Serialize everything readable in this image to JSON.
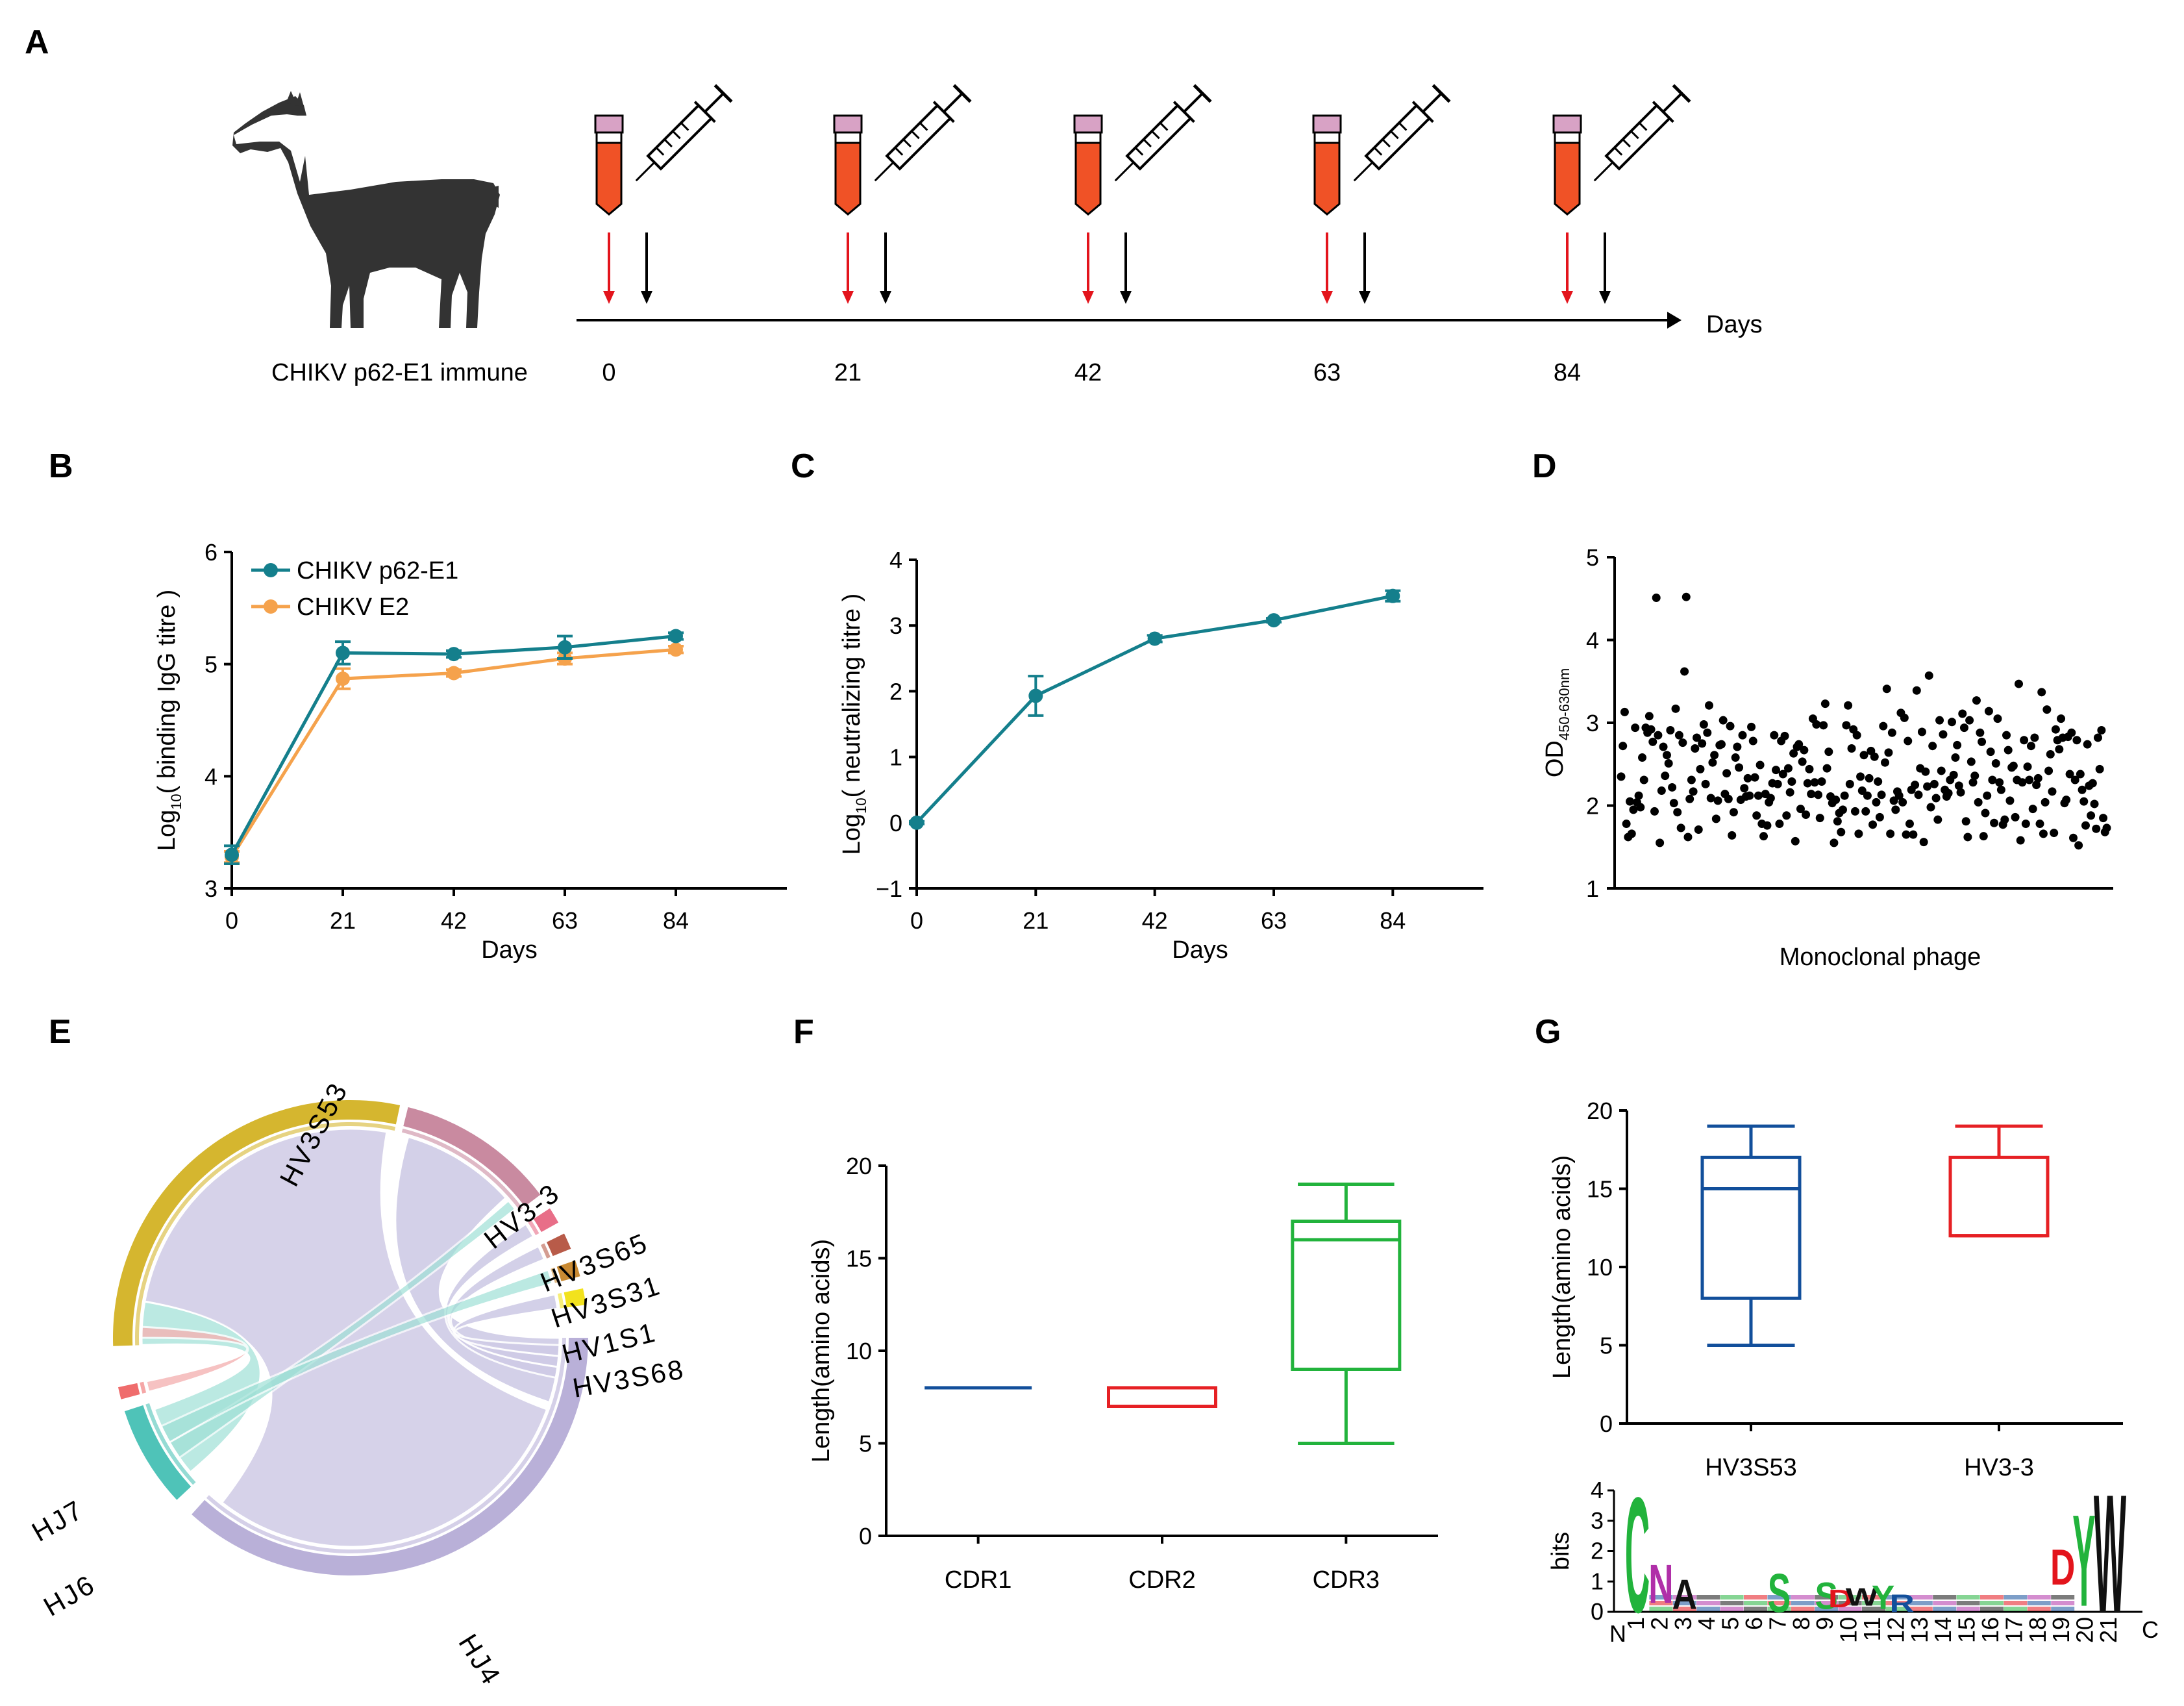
{
  "panels": {
    "A": "A",
    "B": "B",
    "C": "C",
    "D": "D",
    "E": "E",
    "F": "F",
    "G": "G"
  },
  "colors": {
    "teal": "#147f8c",
    "orange": "#f5a24c",
    "red_arrow": "#e3141c",
    "blue_box": "#124f9b",
    "red_box": "#e62024",
    "green_box": "#22b33c",
    "tube_liquid": "#f05226",
    "tube_cap": "#d8a2c5"
  },
  "timeline": {
    "label": "CHIKV p62-E1 immune",
    "days": [
      "0",
      "21",
      "42",
      "63",
      "84"
    ],
    "axis_label": "Days"
  },
  "chart_data": [
    {
      "id": "B",
      "type": "line",
      "x": [
        0,
        21,
        42,
        63,
        84
      ],
      "xticks": [
        "0",
        "21",
        "42",
        "63",
        "84"
      ],
      "xlim": [
        0,
        105
      ],
      "ylim": [
        3,
        6
      ],
      "yticks": [
        "3",
        "4",
        "5",
        "6"
      ],
      "xlabel": "Days",
      "ylabel_prefix": "Log",
      "ylabel_sub": "10",
      "ylabel_rest": "( binding  IgG titre )",
      "legend": "top-left",
      "series": [
        {
          "name": "CHIKV p62-E1",
          "values": [
            3.3,
            5.1,
            5.09,
            5.15,
            5.25
          ],
          "err": [
            0.08,
            0.1,
            0.03,
            0.1,
            0.03
          ]
        },
        {
          "name": "CHIKV E2",
          "values": [
            3.28,
            4.87,
            4.92,
            5.05,
            5.13
          ],
          "err": [
            0.05,
            0.09,
            0.03,
            0.05,
            0.03
          ]
        }
      ]
    },
    {
      "id": "C",
      "type": "line",
      "x": [
        0,
        21,
        42,
        63,
        84
      ],
      "xticks": [
        "0",
        "21",
        "42",
        "63",
        "84"
      ],
      "xlim": [
        0,
        100
      ],
      "ylim": [
        -1,
        4
      ],
      "yticks": [
        "−1",
        "0",
        "1",
        "2",
        "3",
        "4"
      ],
      "xlabel": "Days",
      "ylabel_prefix": "Log",
      "ylabel_sub": "10",
      "ylabel_rest": "( neutralizing titre )",
      "series": [
        {
          "name": "CHIKV p62-E1",
          "values": [
            0,
            1.93,
            2.8,
            3.08,
            3.45
          ],
          "err": [
            0.02,
            0.3,
            0.05,
            0.03,
            0.08
          ]
        }
      ]
    },
    {
      "id": "D",
      "type": "scatter",
      "ylim": [
        1,
        5
      ],
      "yticks": [
        "1",
        "2",
        "3",
        "4",
        "5"
      ],
      "xlabel": "Monoclonal phage",
      "ylabel_prefix": "OD",
      "ylabel_sub": "450-630nm",
      "y": [
        2.35,
        2.72,
        3.13,
        1.78,
        1.62,
        2.05,
        1.66,
        1.95,
        2.94,
        2.04,
        2.12,
        1.98,
        2.58,
        2.31,
        2.94,
        2.88,
        3.08,
        2.92,
        2.77,
        1.93,
        4.51,
        2.85,
        1.55,
        2.18,
        2.71,
        2.36,
        2.61,
        2.51,
        2.91,
        2.22,
        2.03,
        3.17,
        1.92,
        2.85,
        1.73,
        2.76,
        3.62,
        4.52,
        1.62,
        2.08,
        2.31,
        2.17,
        2.69,
        2.82,
        1.71,
        2.44,
        2.75,
        2.98,
        2.26,
        2.88,
        3.21,
        2.09,
        2.52,
        2.61,
        1.84,
        2.06,
        2.73,
        2.74,
        3.03,
        2.14,
        2.39,
        2.08,
        2.96,
        1.64,
        1.92,
        2.58,
        2.71,
        2.46,
        2.07,
        2.85,
        2.21,
        2.11,
        2.33,
        2.12,
        2.95,
        2.78,
        2.34,
        1.88,
        2.12,
        2.49,
        1.78,
        1.63,
        2.14,
        1.76,
        2.04,
        2.09,
        2.27,
        2.85,
        2.43,
        2.26,
        1.78,
        2.78,
        2.38,
        2.84,
        1.88,
        2.45,
        2.16,
        2.29,
        2.63,
        1.57,
        2.71,
        2.74,
        1.96,
        2.53,
        2.67,
        1.89,
        2.27,
        2.44,
        2.14,
        3.05,
        2.28,
        2.98,
        2.13,
        1.85,
        2.29,
        2.97,
        3.23,
        2.45,
        2.65,
        2.11,
        2.03,
        1.55,
        2.07,
        1.81,
        1.91,
        1.68,
        1.95,
        2.12,
        2.97,
        3.21,
        2.26,
        2.69,
        2.92,
        1.93,
        2.85,
        1.66,
        2.35,
        2.18,
        2.61,
        1.93,
        2.12,
        2.33,
        2.66,
        1.77,
        2.59,
        2.04,
        2.29,
        1.86,
        2.13,
        2.96,
        2.52,
        3.41,
        2.64,
        1.66,
        2.88,
        2.06,
        1.95,
        2.17,
        2.12,
        3.12,
        2.04,
        3.06,
        1.65,
        2.78,
        1.78,
        2.19,
        1.65,
        2.25,
        3.39,
        2.13,
        2.45,
        2.89,
        1.56,
        2.41,
        2.23,
        3.57,
        1.98,
        2.72,
        2.26,
        2.09,
        1.83,
        3.03,
        2.42,
        2.86,
        2.19,
        2.11,
        2.15,
        2.31,
        3.01,
        2.37,
        2.58,
        2.73,
        2.24,
        2.16,
        3.11,
        2.94,
        1.81,
        1.62,
        3.03,
        2.53,
        2.28,
        2.36,
        3.27,
        2.04,
        2.88,
        2.77,
        1.63,
        1.91,
        2.12,
        3.14,
        2.65,
        2.31,
        1.79,
        2.51,
        3.05,
        2.28,
        2.19,
        1.77,
        1.83,
        2.85,
        2.67,
        2.06,
        2.46,
        2.48,
        1.86,
        2.31,
        3.47,
        1.58,
        2.28,
        2.79,
        1.78,
        2.47,
        2.31,
        2.72,
        1.96,
        2.82,
        2.25,
        2.33,
        1.78,
        3.37,
        1.66,
        2.04,
        3.16,
        2.42,
        2.62,
        2.17,
        1.67,
        2.92,
        2.79,
        2.68,
        3.05,
        2.82,
        2.03,
        2.07,
        2.83,
        2.38,
        2.88,
        1.61,
        2.31,
        2.79,
        1.52,
        2.38,
        2.19,
        2.05,
        1.76,
        2.74,
        2.24,
        1.88,
        2.27,
        2.02,
        1.72,
        2.82,
        2.44,
        2.91,
        1.85,
        1.68,
        1.73
      ]
    },
    {
      "id": "F",
      "type": "box",
      "categories": [
        "CDR1",
        "CDR2",
        "CDR3"
      ],
      "ylabel": "Length(amino acids)",
      "ylim": [
        0,
        20
      ],
      "yticks": [
        "0",
        "5",
        "10",
        "15",
        "20"
      ],
      "boxes": [
        {
          "min": 8,
          "q1": 8,
          "median": 8,
          "q3": 8,
          "max": 8
        },
        {
          "min": 7,
          "q1": 7,
          "median": 7,
          "q3": 8,
          "max": 8
        },
        {
          "min": 5,
          "q1": 9,
          "median": 16,
          "q3": 17,
          "max": 19
        }
      ]
    },
    {
      "id": "G",
      "type": "box",
      "categories": [
        "HV3S53",
        "HV3-3"
      ],
      "ylabel": "Length(amino acids)",
      "ylim": [
        0,
        20
      ],
      "yticks": [
        "0",
        "5",
        "10",
        "15",
        "20"
      ],
      "boxes": [
        {
          "min": 5,
          "q1": 8,
          "median": 15,
          "q3": 17,
          "max": 19
        },
        {
          "min": 12,
          "q1": 12,
          "median": 12,
          "q3": 17,
          "max": 19
        }
      ]
    }
  ],
  "chord": {
    "segments": [
      "HV3S53",
      "HV3-3",
      "HV3S65",
      "HV3S31",
      "HV1S1",
      "HV3S68",
      "HJ7",
      "HJ6",
      "HJ4"
    ]
  },
  "logo": {
    "ylabel": "bits",
    "yticks": [
      "0",
      "1",
      "2",
      "3",
      "4"
    ],
    "ends": [
      "N",
      "C"
    ],
    "positions": [
      "1",
      "2",
      "3",
      "4",
      "5",
      "6",
      "7",
      "8",
      "9",
      "10",
      "11",
      "12",
      "13",
      "14",
      "15",
      "16",
      "17",
      "18",
      "19",
      "20",
      "21"
    ],
    "letters": [
      {
        "ch": "C",
        "color": "#22b33c",
        "height": 3.9
      },
      {
        "ch": "N",
        "color": "#b02fa8",
        "height": 1.3
      },
      {
        "ch": "A",
        "color": "#111111",
        "height": 1.0
      },
      {
        "ch": "S",
        "color": "#22b33c",
        "height": 1.3
      },
      {
        "ch": "S",
        "color": "#22b33c",
        "height": 0.9
      },
      {
        "ch": "D",
        "color": "#e3141c",
        "height": 0.6
      },
      {
        "ch": "W",
        "color": "#111111",
        "height": 0.6
      },
      {
        "ch": "Y",
        "color": "#22b33c",
        "height": 0.8
      },
      {
        "ch": "R",
        "color": "#124f9b",
        "height": 0.6
      },
      {
        "ch": "D",
        "color": "#e3141c",
        "height": 1.2
      },
      {
        "ch": "Y",
        "color": "#22b33c",
        "height": 3.1
      },
      {
        "ch": "W",
        "color": "#111111",
        "height": 4.0
      }
    ]
  }
}
